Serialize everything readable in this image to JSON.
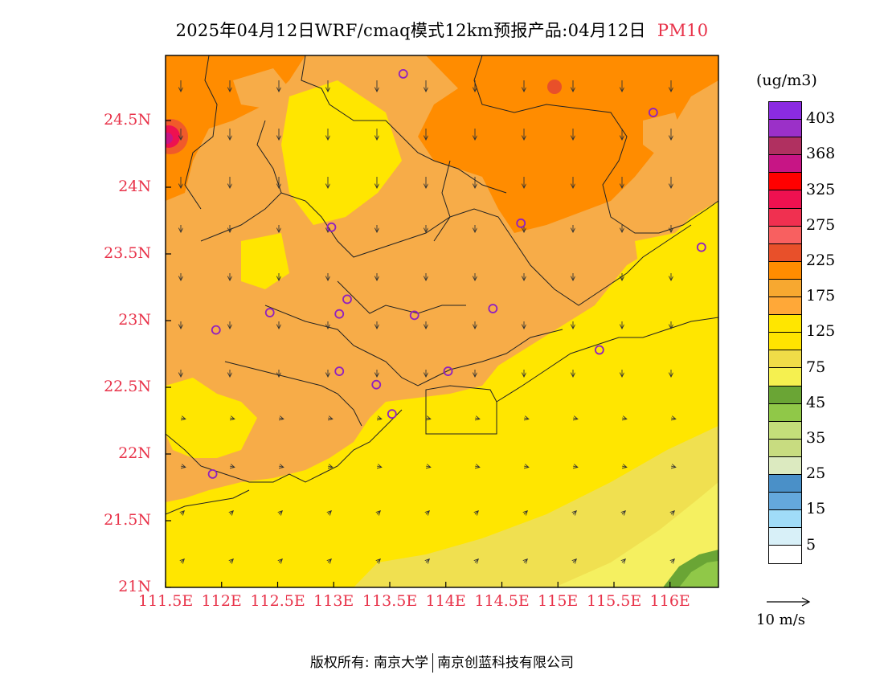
{
  "title": {
    "main": "2025年04月12日WRF/cmaq模式12km预报产品:04月12日",
    "pollutant": "PM10"
  },
  "axes": {
    "lat_labels": [
      "24.5N",
      "24N",
      "23.5N",
      "23N",
      "22.5N",
      "22N",
      "21.5N",
      "21N"
    ],
    "lon_labels": [
      "111.5E",
      "112E",
      "112.5E",
      "113E",
      "113.5E",
      "114E",
      "114.5E",
      "115E",
      "115.5E",
      "116E"
    ]
  },
  "colorbar": {
    "unit": "(ug/m3)",
    "labels": [
      "403",
      "368",
      "325",
      "275",
      "225",
      "175",
      "125",
      "75",
      "45",
      "35",
      "25",
      "15",
      "5"
    ],
    "colors": [
      "#8b2be2",
      "#9b30c8",
      "#b03060",
      "#c71585",
      "#ff0000",
      "#ee1150",
      "#f03050",
      "#f86060",
      "#e8502a",
      "#ff8c00",
      "#f7a830",
      "#ffa838",
      "#ffe600",
      "#ffe400",
      "#f0dc48",
      "#f5f050",
      "#6aa535",
      "#90c848",
      "#c4de7a",
      "#c8dc80",
      "#dceac0",
      "#4a90c8",
      "#64a8dc",
      "#a0dcf8",
      "#d8f0f8",
      "#ffffff"
    ]
  },
  "wind_reference": {
    "label": "10 m/s"
  },
  "footer": {
    "left": "版权所有: 南京大学",
    "right": "南京创蓝科技有限公司"
  },
  "stations": [
    {
      "lon": 113.62,
      "lat": 24.85
    },
    {
      "lon": 115.85,
      "lat": 24.56
    },
    {
      "lon": 112.98,
      "lat": 23.7
    },
    {
      "lon": 114.67,
      "lat": 23.73
    },
    {
      "lon": 116.28,
      "lat": 23.55
    },
    {
      "lon": 113.12,
      "lat": 23.16
    },
    {
      "lon": 112.43,
      "lat": 23.06
    },
    {
      "lon": 113.05,
      "lat": 23.05
    },
    {
      "lon": 113.72,
      "lat": 23.04
    },
    {
      "lon": 114.42,
      "lat": 23.09
    },
    {
      "lon": 111.95,
      "lat": 22.93
    },
    {
      "lon": 113.05,
      "lat": 22.62
    },
    {
      "lon": 113.38,
      "lat": 22.52
    },
    {
      "lon": 114.02,
      "lat": 22.62
    },
    {
      "lon": 115.37,
      "lat": 22.78
    },
    {
      "lon": 113.52,
      "lat": 22.3
    },
    {
      "lon": 111.92,
      "lat": 21.85
    }
  ]
}
